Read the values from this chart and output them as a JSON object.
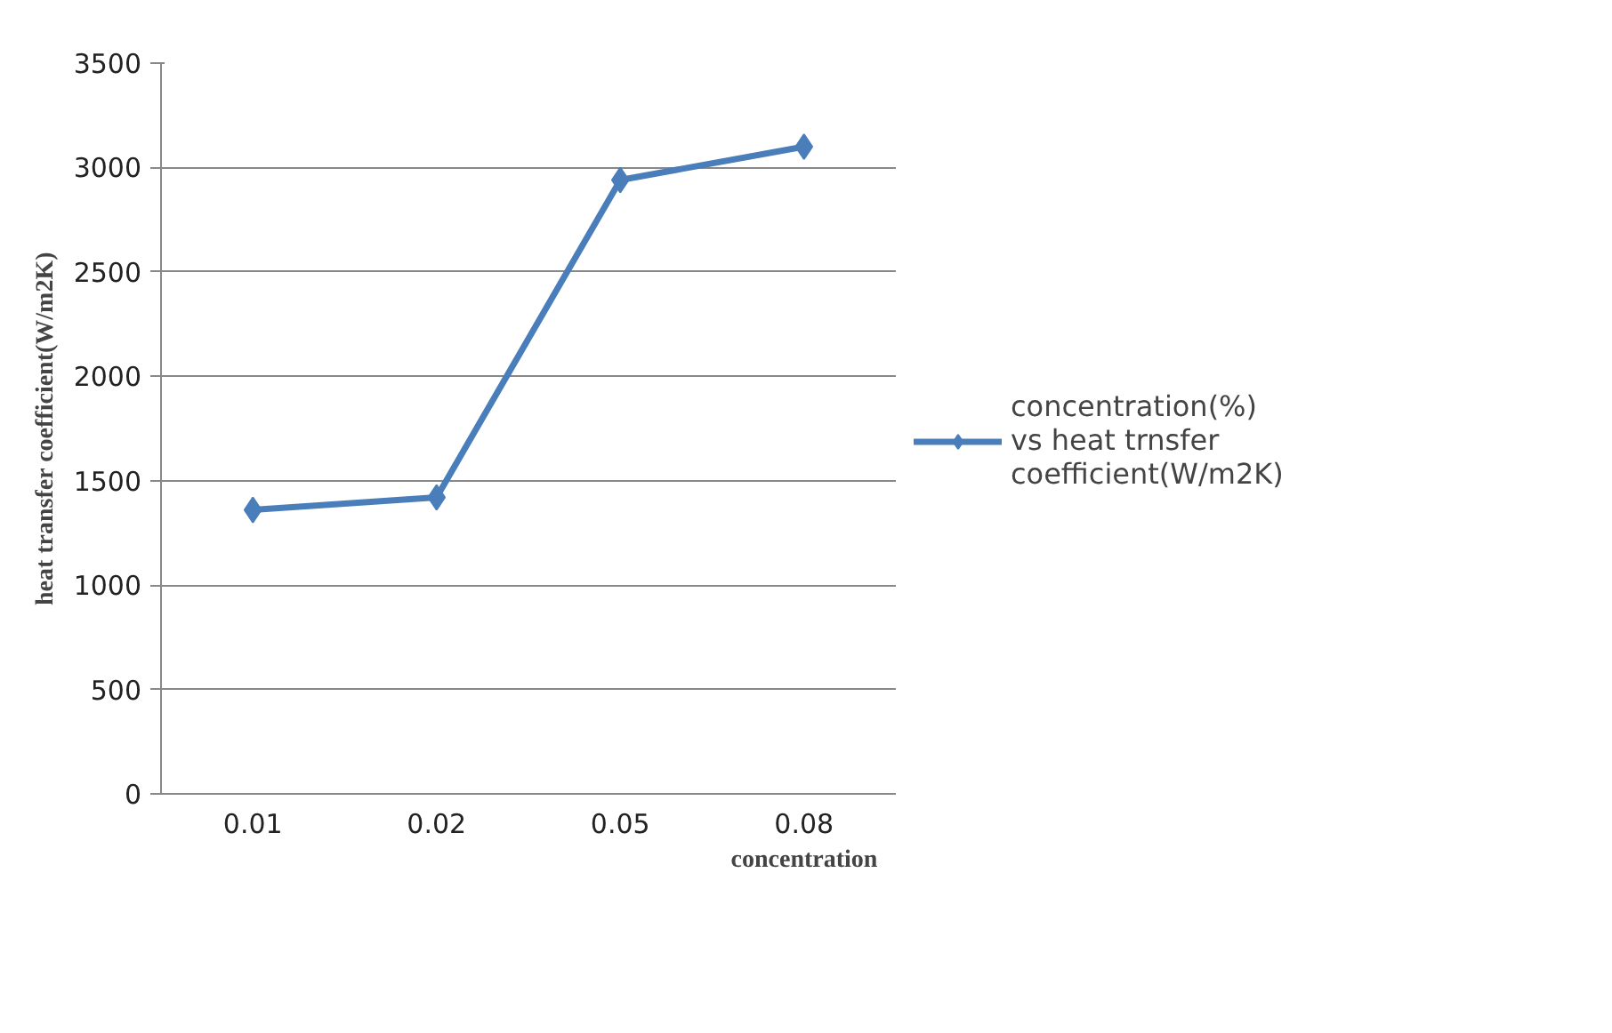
{
  "chart_data": {
    "type": "line",
    "xlabel": "concentration",
    "ylabel": "heat transfer coefficient(W/m2K)",
    "categories": [
      "0.01",
      "0.02",
      "0.05",
      "0.08"
    ],
    "series": [
      {
        "name": "concentration(%) vs heat trnsfer coefficient(W/m2K)",
        "color": "#4a7ebb",
        "values": [
          1360,
          1420,
          2940,
          3100
        ]
      }
    ],
    "ylim": [
      0,
      3500
    ],
    "yticks": [
      0,
      500,
      1000,
      1500,
      2000,
      2500,
      3000,
      3500
    ],
    "grid": "y",
    "legend": "right",
    "marker": "diamond",
    "line_style": "solid"
  }
}
